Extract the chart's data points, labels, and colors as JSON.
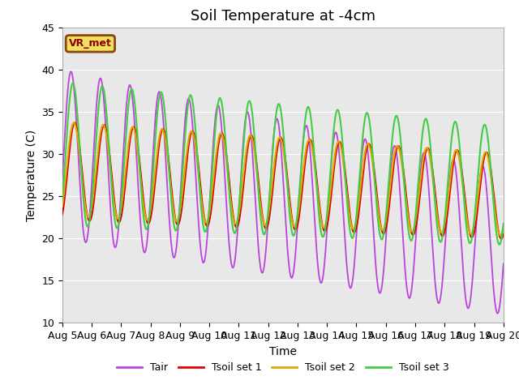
{
  "title": "Soil Temperature at -4cm",
  "xlabel": "Time",
  "ylabel": "Temperature (C)",
  "ylim": [
    10,
    45
  ],
  "annotation": "VR_met",
  "bg_color": "#e8e8e8",
  "colors": {
    "Tair": "#bb44dd",
    "Tsoil1": "#dd0000",
    "Tsoil2": "#ddaa00",
    "Tsoil3": "#44cc44"
  },
  "legend_labels": [
    "Tair",
    "Tsoil set 1",
    "Tsoil set 2",
    "Tsoil set 3"
  ],
  "xtick_labels": [
    "Aug 5",
    "Aug 6",
    "Aug 7",
    "Aug 8",
    "Aug 9",
    "Aug 10",
    "Aug 11",
    "Aug 12",
    "Aug 13",
    "Aug 14",
    "Aug 15",
    "Aug 16",
    "Aug 17",
    "Aug 18",
    "Aug 19",
    "Aug 20"
  ],
  "title_fontsize": 13,
  "axis_fontsize": 10,
  "tick_fontsize": 9
}
